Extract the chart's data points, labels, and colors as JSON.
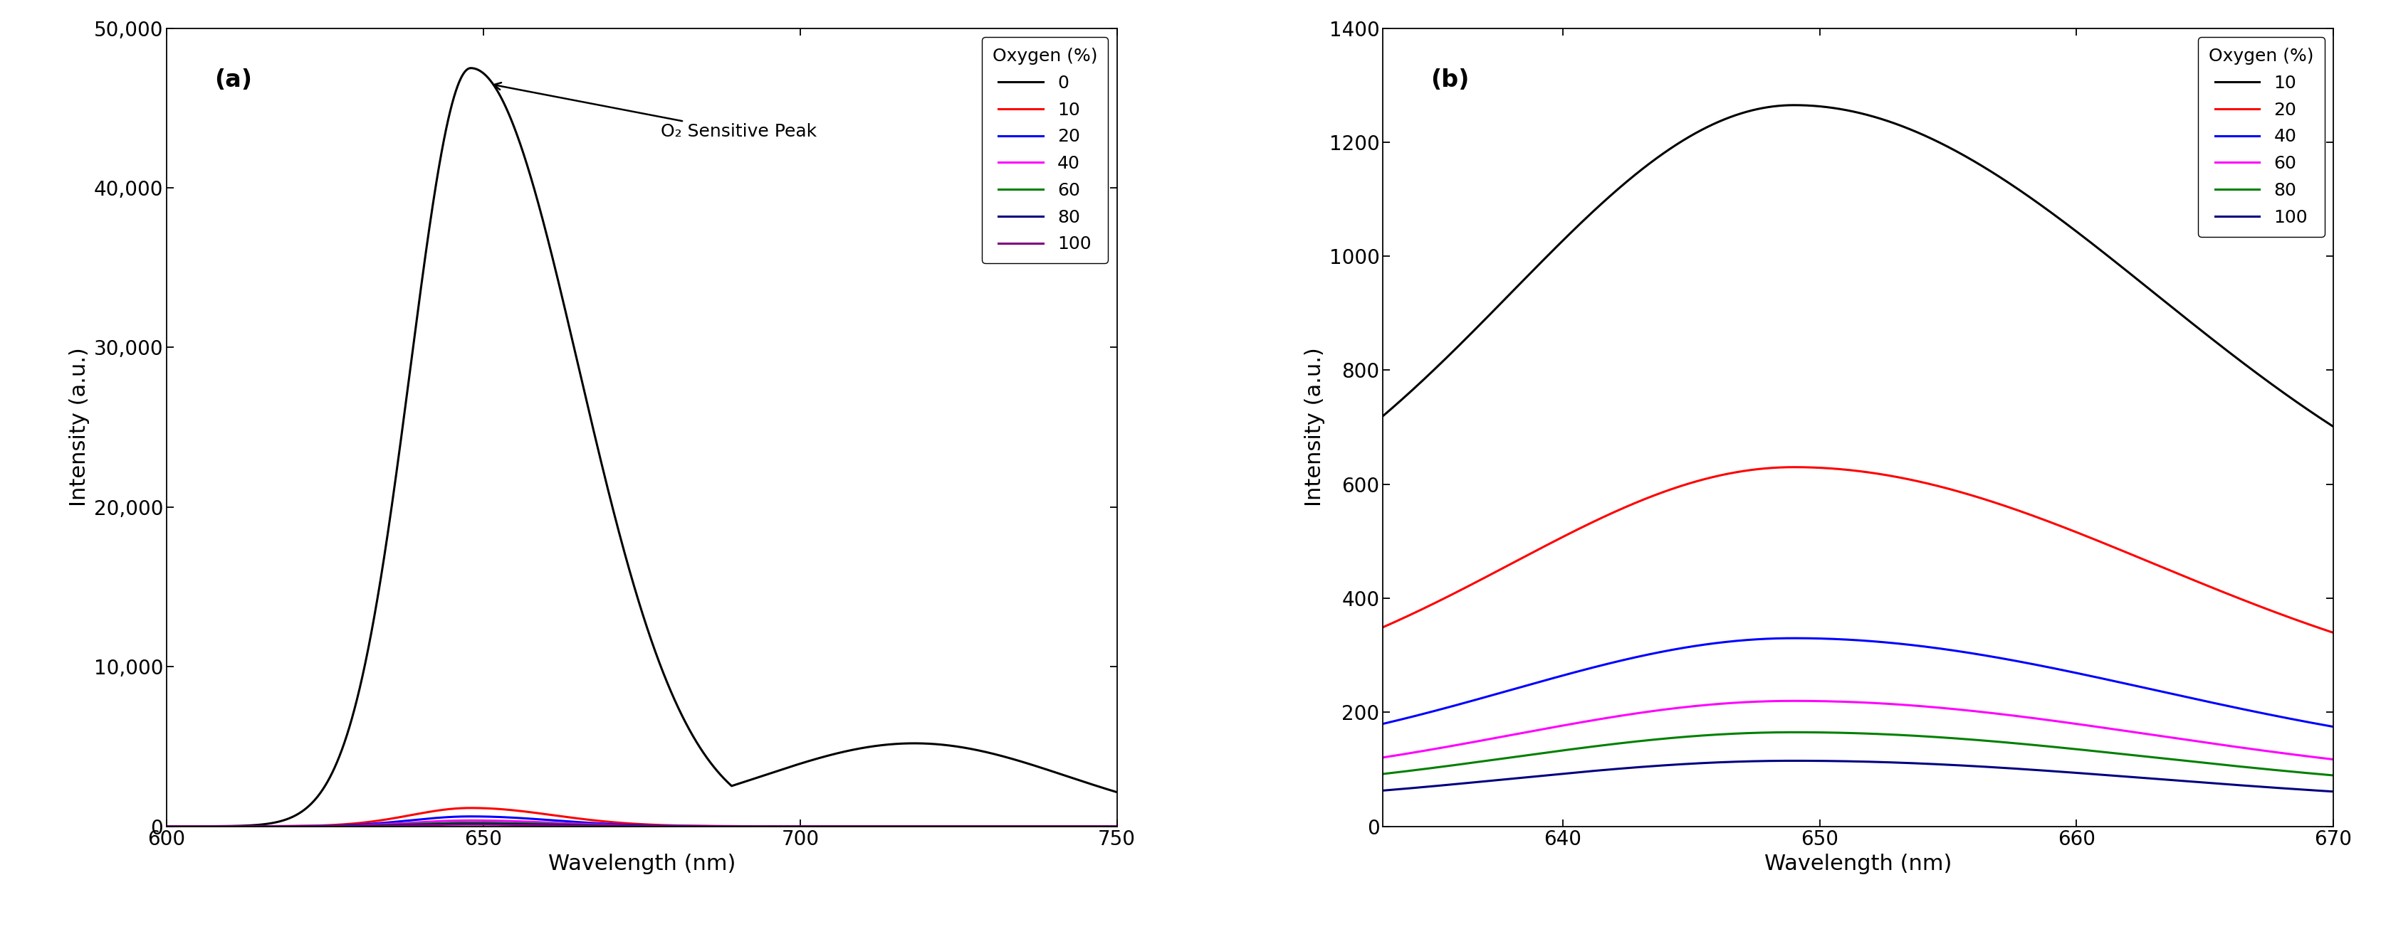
{
  "panel_a": {
    "label": "(a)",
    "xlabel": "Wavelength (nm)",
    "ylabel": "Intensity (a.u.)",
    "xlim": [
      600,
      750
    ],
    "ylim": [
      0,
      50000
    ],
    "yticks": [
      0,
      10000,
      20000,
      30000,
      40000,
      50000
    ],
    "ytick_labels": [
      "0",
      "10,000",
      "20,000",
      "30,000",
      "40,000",
      "50,000"
    ],
    "xticks": [
      600,
      650,
      700,
      750
    ],
    "annotation_text": "O₂ Sensitive Peak",
    "series": [
      {
        "label": "0",
        "color": "#000000",
        "peak": 47500,
        "peak_wl": 648,
        "sigma_l": 9.5,
        "sigma_r": 17,
        "base": 0,
        "second_peak": 5200,
        "second_wl": 718,
        "second_sigma": 24
      },
      {
        "label": "10",
        "color": "#ff0000",
        "peak": 1150,
        "peak_wl": 648,
        "sigma_l": 9.5,
        "sigma_r": 13,
        "base": 0,
        "second_peak": 0,
        "second_wl": 0,
        "second_sigma": 0
      },
      {
        "label": "20",
        "color": "#0000ff",
        "peak": 620,
        "peak_wl": 648,
        "sigma_l": 9.5,
        "sigma_r": 13,
        "base": 0,
        "second_peak": 0,
        "second_wl": 0,
        "second_sigma": 0
      },
      {
        "label": "40",
        "color": "#ff00ff",
        "peak": 370,
        "peak_wl": 648,
        "sigma_l": 9.5,
        "sigma_r": 13,
        "base": 0,
        "second_peak": 0,
        "second_wl": 0,
        "second_sigma": 0
      },
      {
        "label": "60",
        "color": "#008000",
        "peak": 230,
        "peak_wl": 648,
        "sigma_l": 9.5,
        "sigma_r": 13,
        "base": 0,
        "second_peak": 0,
        "second_wl": 0,
        "second_sigma": 0
      },
      {
        "label": "80",
        "color": "#000080",
        "peak": 160,
        "peak_wl": 648,
        "sigma_l": 9.5,
        "sigma_r": 13,
        "base": 0,
        "second_peak": 0,
        "second_wl": 0,
        "second_sigma": 0
      },
      {
        "label": "100",
        "color": "#800080",
        "peak": 110,
        "peak_wl": 648,
        "sigma_l": 9.5,
        "sigma_r": 13,
        "base": 0,
        "second_peak": 0,
        "second_wl": 0,
        "second_sigma": 0
      }
    ],
    "legend_title": "Oxygen (%)"
  },
  "panel_b": {
    "label": "(b)",
    "xlabel": "Wavelength (nm)",
    "ylabel": "Intensity (a.u.)",
    "xlim": [
      633,
      670
    ],
    "ylim": [
      0,
      1400
    ],
    "yticks": [
      0,
      200,
      400,
      600,
      800,
      1000,
      1200,
      1400
    ],
    "xticks": [
      640,
      650,
      660,
      670
    ],
    "series": [
      {
        "label": "10",
        "color": "#000000",
        "peak": 1265,
        "peak_wl": 649,
        "sigma_l": 11,
        "sigma_r": 14,
        "base": 430
      },
      {
        "label": "20",
        "color": "#ff0000",
        "peak": 630,
        "peak_wl": 649,
        "sigma_l": 11,
        "sigma_r": 14,
        "base": 200
      },
      {
        "label": "40",
        "color": "#0000ff",
        "peak": 330,
        "peak_wl": 649,
        "sigma_l": 11,
        "sigma_r": 14,
        "base": 100
      },
      {
        "label": "60",
        "color": "#ff00ff",
        "peak": 220,
        "peak_wl": 649,
        "sigma_l": 11,
        "sigma_r": 14,
        "base": 68
      },
      {
        "label": "80",
        "color": "#008000",
        "peak": 165,
        "peak_wl": 649,
        "sigma_l": 11,
        "sigma_r": 14,
        "base": 53
      },
      {
        "label": "100",
        "color": "#000080",
        "peak": 115,
        "peak_wl": 649,
        "sigma_l": 11,
        "sigma_r": 14,
        "base": 35
      }
    ],
    "legend_title": "Oxygen (%)"
  },
  "background_color": "#ffffff",
  "tick_fontsize": 20,
  "label_fontsize": 22,
  "legend_fontsize": 18,
  "panel_label_fontsize": 24,
  "linewidth": 2.2
}
